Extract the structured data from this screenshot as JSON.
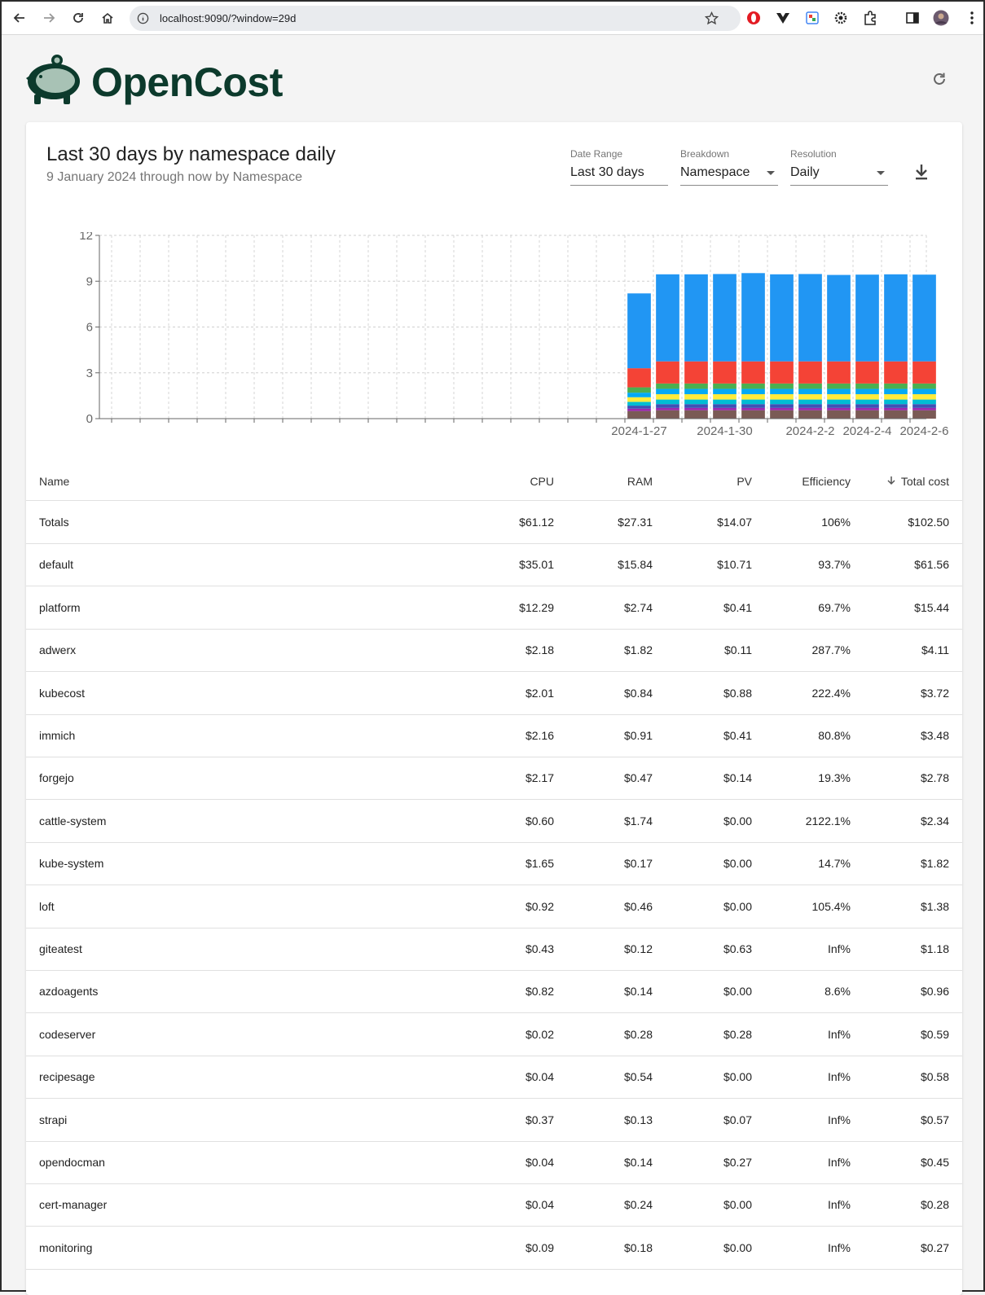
{
  "browser": {
    "url": "localhost:9090/?window=29d"
  },
  "header": {
    "app_name": "OpenCost"
  },
  "report": {
    "title": "Last 30 days by namespace daily",
    "subtitle": "9 January 2024 through now by Namespace"
  },
  "controls": {
    "date_range": {
      "label": "Date Range",
      "value": "Last 30 days"
    },
    "breakdown": {
      "label": "Breakdown",
      "value": "Namespace"
    },
    "resolution": {
      "label": "Resolution",
      "value": "Daily"
    }
  },
  "chart_data": {
    "type": "bar",
    "stacked": true,
    "ylim": [
      0,
      12
    ],
    "y_ticks": [
      0,
      3,
      6,
      9,
      12
    ],
    "grid": true,
    "x_tick_labels": [
      "2024-1-27",
      "2024-1-30",
      "2024-2-2",
      "2024-2-4",
      "2024-2-6"
    ],
    "slots": 29,
    "first_bar_slot": 18,
    "categories": [
      "2024-1-27",
      "2024-1-28",
      "2024-1-29",
      "2024-1-30",
      "2024-1-31",
      "2024-2-1",
      "2024-2-2",
      "2024-2-3",
      "2024-2-4",
      "2024-2-5",
      "2024-2-6"
    ],
    "series": [
      {
        "color": "#7a5a55",
        "values": [
          0.5,
          0.55,
          0.55,
          0.55,
          0.55,
          0.55,
          0.55,
          0.55,
          0.55,
          0.55,
          0.55
        ]
      },
      {
        "color": "#9c27b0",
        "values": [
          0.15,
          0.15,
          0.15,
          0.15,
          0.15,
          0.15,
          0.15,
          0.15,
          0.15,
          0.15,
          0.15
        ]
      },
      {
        "color": "#3f51b5",
        "values": [
          0.2,
          0.25,
          0.25,
          0.25,
          0.25,
          0.25,
          0.25,
          0.25,
          0.25,
          0.25,
          0.25
        ]
      },
      {
        "color": "#00bcd4",
        "values": [
          0.25,
          0.3,
          0.3,
          0.3,
          0.3,
          0.3,
          0.3,
          0.3,
          0.3,
          0.3,
          0.3
        ]
      },
      {
        "color": "#ffeb3b",
        "values": [
          0.3,
          0.35,
          0.35,
          0.35,
          0.35,
          0.35,
          0.35,
          0.35,
          0.35,
          0.35,
          0.35
        ]
      },
      {
        "color": "#03a9f4",
        "values": [
          0.3,
          0.35,
          0.35,
          0.35,
          0.35,
          0.35,
          0.35,
          0.35,
          0.35,
          0.35,
          0.35
        ]
      },
      {
        "color": "#4caf50",
        "values": [
          0.35,
          0.35,
          0.35,
          0.35,
          0.35,
          0.35,
          0.35,
          0.35,
          0.35,
          0.35,
          0.35
        ]
      },
      {
        "color": "#f44336",
        "values": [
          1.25,
          1.45,
          1.45,
          1.45,
          1.45,
          1.45,
          1.45,
          1.45,
          1.45,
          1.45,
          1.45
        ]
      },
      {
        "color": "#2196f3",
        "values": [
          4.9,
          5.7,
          5.7,
          5.72,
          5.78,
          5.7,
          5.72,
          5.66,
          5.68,
          5.7,
          5.68
        ]
      }
    ]
  },
  "table": {
    "columns": {
      "name": "Name",
      "cpu": "CPU",
      "ram": "RAM",
      "pv": "PV",
      "efficiency": "Efficiency",
      "total": "Total cost"
    },
    "rows": [
      {
        "name": "Totals",
        "cpu": "$61.12",
        "ram": "$27.31",
        "pv": "$14.07",
        "efficiency": "106%",
        "total": "$102.50"
      },
      {
        "name": "default",
        "cpu": "$35.01",
        "ram": "$15.84",
        "pv": "$10.71",
        "efficiency": "93.7%",
        "total": "$61.56"
      },
      {
        "name": "platform",
        "cpu": "$12.29",
        "ram": "$2.74",
        "pv": "$0.41",
        "efficiency": "69.7%",
        "total": "$15.44"
      },
      {
        "name": "adwerx",
        "cpu": "$2.18",
        "ram": "$1.82",
        "pv": "$0.11",
        "efficiency": "287.7%",
        "total": "$4.11"
      },
      {
        "name": "kubecost",
        "cpu": "$2.01",
        "ram": "$0.84",
        "pv": "$0.88",
        "efficiency": "222.4%",
        "total": "$3.72"
      },
      {
        "name": "immich",
        "cpu": "$2.16",
        "ram": "$0.91",
        "pv": "$0.41",
        "efficiency": "80.8%",
        "total": "$3.48"
      },
      {
        "name": "forgejo",
        "cpu": "$2.17",
        "ram": "$0.47",
        "pv": "$0.14",
        "efficiency": "19.3%",
        "total": "$2.78"
      },
      {
        "name": "cattle-system",
        "cpu": "$0.60",
        "ram": "$1.74",
        "pv": "$0.00",
        "efficiency": "2122.1%",
        "total": "$2.34"
      },
      {
        "name": "kube-system",
        "cpu": "$1.65",
        "ram": "$0.17",
        "pv": "$0.00",
        "efficiency": "14.7%",
        "total": "$1.82"
      },
      {
        "name": "loft",
        "cpu": "$0.92",
        "ram": "$0.46",
        "pv": "$0.00",
        "efficiency": "105.4%",
        "total": "$1.38"
      },
      {
        "name": "giteatest",
        "cpu": "$0.43",
        "ram": "$0.12",
        "pv": "$0.63",
        "efficiency": "Inf%",
        "total": "$1.18"
      },
      {
        "name": "azdoagents",
        "cpu": "$0.82",
        "ram": "$0.14",
        "pv": "$0.00",
        "efficiency": "8.6%",
        "total": "$0.96"
      },
      {
        "name": "codeserver",
        "cpu": "$0.02",
        "ram": "$0.28",
        "pv": "$0.28",
        "efficiency": "Inf%",
        "total": "$0.59"
      },
      {
        "name": "recipesage",
        "cpu": "$0.04",
        "ram": "$0.54",
        "pv": "$0.00",
        "efficiency": "Inf%",
        "total": "$0.58"
      },
      {
        "name": "strapi",
        "cpu": "$0.37",
        "ram": "$0.13",
        "pv": "$0.07",
        "efficiency": "Inf%",
        "total": "$0.57"
      },
      {
        "name": "opendocman",
        "cpu": "$0.04",
        "ram": "$0.14",
        "pv": "$0.27",
        "efficiency": "Inf%",
        "total": "$0.45"
      },
      {
        "name": "cert-manager",
        "cpu": "$0.04",
        "ram": "$0.24",
        "pv": "$0.00",
        "efficiency": "Inf%",
        "total": "$0.28"
      },
      {
        "name": "monitoring",
        "cpu": "$0.09",
        "ram": "$0.18",
        "pv": "$0.00",
        "efficiency": "Inf%",
        "total": "$0.27"
      }
    ]
  }
}
